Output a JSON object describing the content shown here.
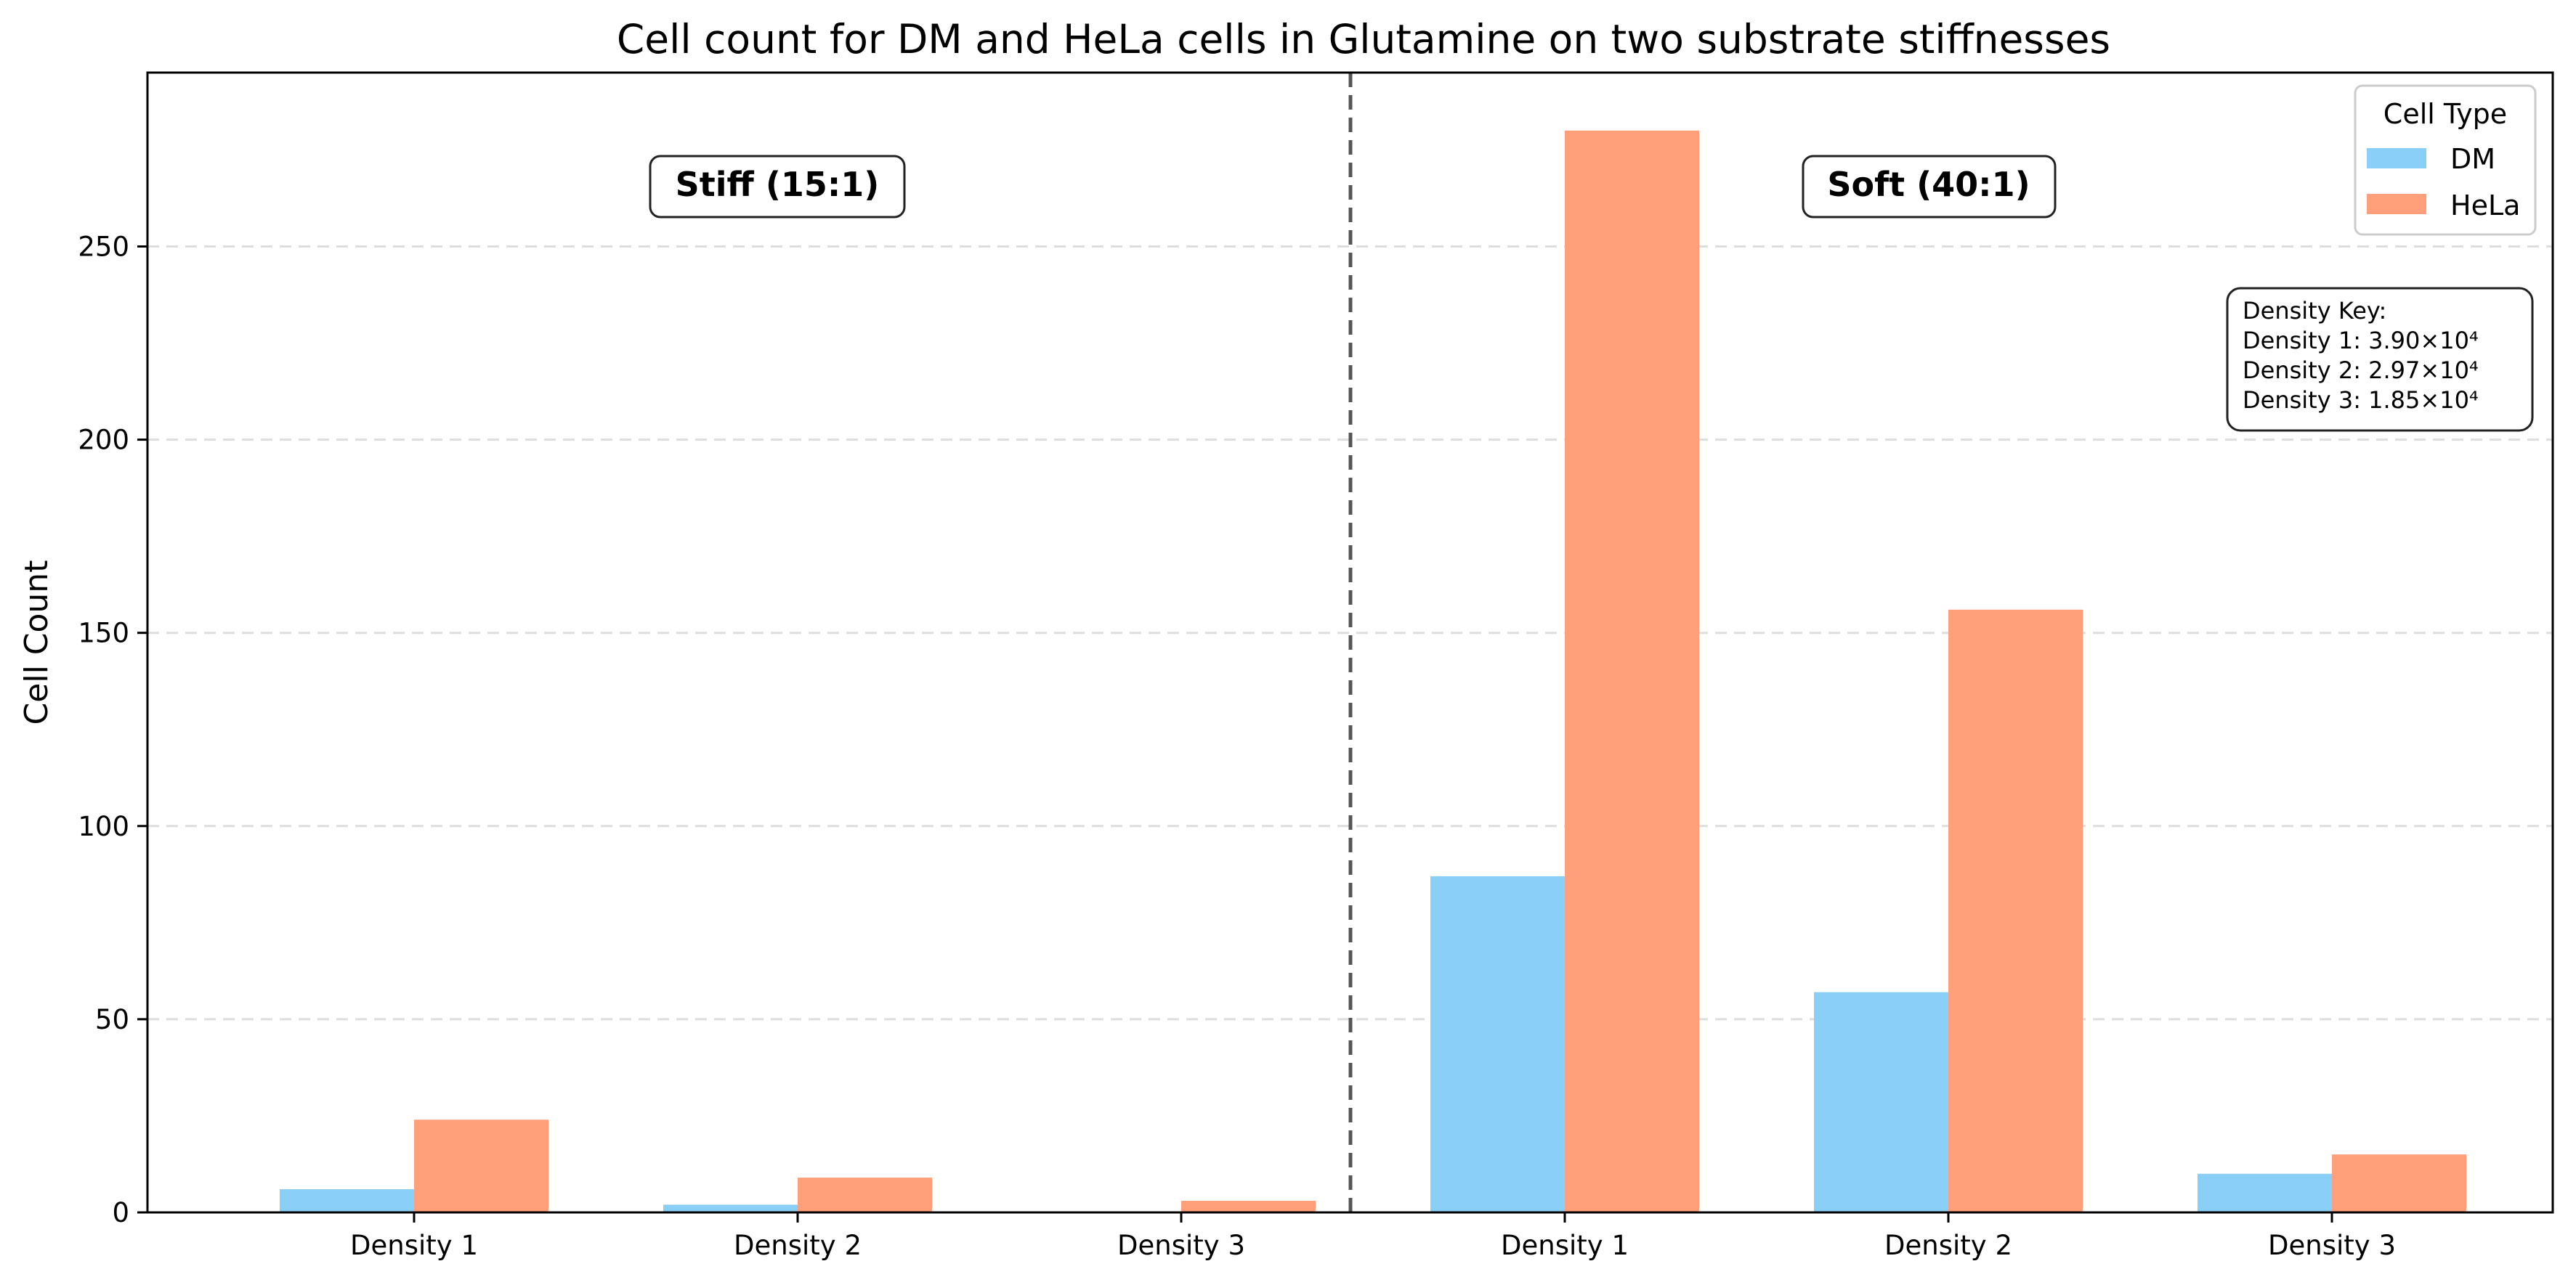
{
  "chart_data": {
    "type": "bar",
    "title": "Cell count for DM and HeLa cells in Glutamine on two substrate stiffnesses",
    "xlabel": "",
    "ylabel": "Cell Count",
    "ylim": [
      0,
      295
    ],
    "yticks": [
      "0",
      "50",
      "100",
      "150",
      "200",
      "250"
    ],
    "grid": "horizontal dashed",
    "categories": [
      "Density 1",
      "Density 2",
      "Density 3",
      "Density 1",
      "Density 2",
      "Density 3"
    ],
    "groups": [
      {
        "label": "Stiff (15:1)",
        "categories": [
          "Density 1",
          "Density 2",
          "Density 3"
        ]
      },
      {
        "label": "Soft (40:1)",
        "categories": [
          "Density 1",
          "Density 2",
          "Density 3"
        ]
      }
    ],
    "series": [
      {
        "name": "DM",
        "color": "#89CFF8",
        "values": [
          6,
          2,
          0,
          87,
          57,
          10
        ]
      },
      {
        "name": "HeLa",
        "color": "#FFA07A",
        "values": [
          24,
          9,
          3,
          280,
          156,
          15
        ]
      }
    ],
    "legend": {
      "title": "Cell Type",
      "position": "top-right"
    },
    "density_key": {
      "title": "Density Key:",
      "lines": [
        "Density 1: 3.90×10⁴",
        "Density 2: 2.97×10⁴",
        "Density 3: 1.85×10⁴"
      ]
    }
  }
}
